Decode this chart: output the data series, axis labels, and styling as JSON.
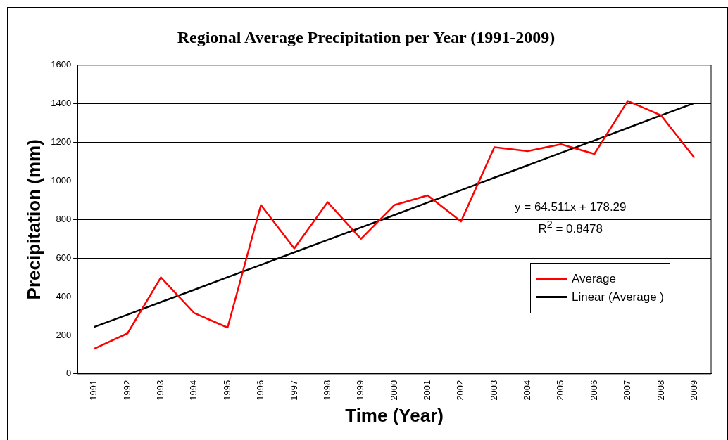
{
  "chart_data": {
    "type": "line",
    "title": "Regional Average Precipitation per Year (1991-2009)",
    "xlabel": "Time (Year)",
    "ylabel": "Precipitation (mm)",
    "categories": [
      "1991",
      "1992",
      "1993",
      "1994",
      "1995",
      "1996",
      "1997",
      "1998",
      "1999",
      "2000",
      "2001",
      "2002",
      "2003",
      "2004",
      "2005",
      "2006",
      "2007",
      "2008",
      "2009"
    ],
    "series": [
      {
        "name": "Average",
        "color": "#ff0000",
        "values": [
          130,
          210,
          500,
          315,
          240,
          875,
          650,
          890,
          700,
          875,
          925,
          790,
          1175,
          1155,
          1190,
          1140,
          1415,
          1340,
          1120
        ]
      },
      {
        "name": "Linear (Average )",
        "color": "#000000",
        "values": [
          243,
          307,
          372,
          436,
          501,
          565,
          630,
          694,
          759,
          823,
          888,
          952,
          1017,
          1081,
          1146,
          1210,
          1275,
          1340,
          1404
        ]
      }
    ],
    "ylim": [
      0,
      1600
    ],
    "yticks": [
      0,
      200,
      400,
      600,
      800,
      1000,
      1200,
      1400,
      1600
    ],
    "grid": "y",
    "legend": "right",
    "marker": "none",
    "line_style": "solid",
    "annotations": [
      "y = 64.511x + 178.29",
      "R$^{2}$ = 0.8478"
    ]
  }
}
